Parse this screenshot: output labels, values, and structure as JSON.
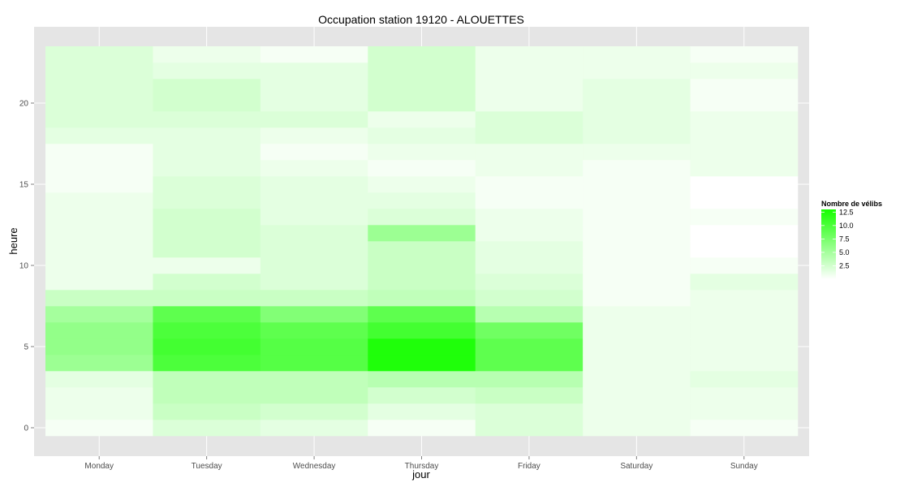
{
  "chart_data": {
    "type": "heatmap",
    "title": "Occupation station 19120 - ALOUETTES",
    "xlabel": "jour",
    "ylabel": "heure",
    "x_categories": [
      "Monday",
      "Tuesday",
      "Wednesday",
      "Thursday",
      "Friday",
      "Saturday",
      "Sunday"
    ],
    "y_ticks": [
      0,
      5,
      10,
      15,
      20
    ],
    "y_ticks_labels": [
      "0",
      "5",
      "10",
      "15",
      "20"
    ],
    "y_range": [
      -0.5,
      23.5
    ],
    "grid": true,
    "legend": {
      "title": "Nombre de vélibs",
      "position": "right",
      "range": [
        0,
        13
      ],
      "breaks": [
        2.5,
        5.0,
        7.5,
        10.0,
        12.5
      ],
      "labels": [
        "2.5",
        "5.0",
        "7.5",
        "10.0",
        "12.5"
      ],
      "low_color": "#ffffff",
      "high_color": "#16ff00"
    },
    "hours": [
      0,
      1,
      2,
      3,
      4,
      5,
      6,
      7,
      8,
      9,
      10,
      11,
      12,
      13,
      14,
      15,
      16,
      17,
      18,
      19,
      20,
      21,
      22,
      23
    ],
    "values": [
      [
        0.5,
        1.0,
        1.0,
        1.5,
        5.5,
        6.0,
        6.0,
        5.0,
        3.0,
        1.0,
        1.0,
        1.0,
        1.0,
        1.0,
        1.0,
        0.5,
        0.5,
        0.5,
        1.5,
        2.0,
        2.0,
        2.0,
        2.0,
        2.0
      ],
      [
        2.0,
        3.0,
        3.5,
        3.5,
        10.0,
        10.5,
        10.0,
        9.0,
        3.0,
        2.5,
        1.0,
        2.5,
        2.5,
        2.5,
        2.0,
        2.0,
        1.5,
        1.5,
        1.5,
        2.0,
        2.5,
        2.5,
        1.5,
        1.0
      ],
      [
        1.5,
        2.5,
        3.5,
        3.5,
        9.5,
        9.5,
        9.0,
        7.0,
        3.0,
        2.0,
        2.0,
        2.0,
        2.0,
        1.5,
        1.5,
        1.5,
        1.0,
        0.5,
        1.0,
        2.0,
        1.5,
        1.5,
        1.5,
        0.5
      ],
      [
        0.5,
        1.5,
        2.5,
        4.0,
        12.5,
        12.5,
        10.5,
        9.0,
        3.5,
        3.0,
        3.0,
        3.0,
        5.5,
        2.0,
        1.5,
        1.0,
        0.5,
        1.0,
        1.5,
        1.0,
        2.5,
        2.5,
        2.5,
        2.5
      ],
      [
        2.0,
        2.0,
        3.0,
        4.0,
        9.0,
        9.0,
        8.0,
        4.0,
        2.5,
        2.0,
        1.5,
        1.5,
        1.0,
        1.0,
        0.5,
        0.5,
        1.0,
        1.0,
        2.0,
        2.0,
        1.0,
        1.0,
        1.0,
        1.0
      ],
      [
        1.0,
        1.0,
        1.0,
        1.0,
        1.0,
        1.0,
        1.0,
        1.0,
        0.5,
        0.5,
        0.5,
        0.5,
        0.5,
        0.5,
        0.5,
        0.5,
        0.5,
        1.0,
        1.5,
        1.5,
        1.5,
        1.5,
        1.0,
        1.0
      ],
      [
        0.5,
        1.0,
        1.0,
        1.5,
        1.0,
        1.0,
        1.0,
        1.0,
        1.0,
        1.5,
        0.5,
        0.0,
        0.0,
        0.5,
        0.0,
        0.0,
        1.0,
        1.0,
        1.0,
        1.0,
        0.5,
        0.5,
        1.0,
        0.5
      ]
    ]
  }
}
